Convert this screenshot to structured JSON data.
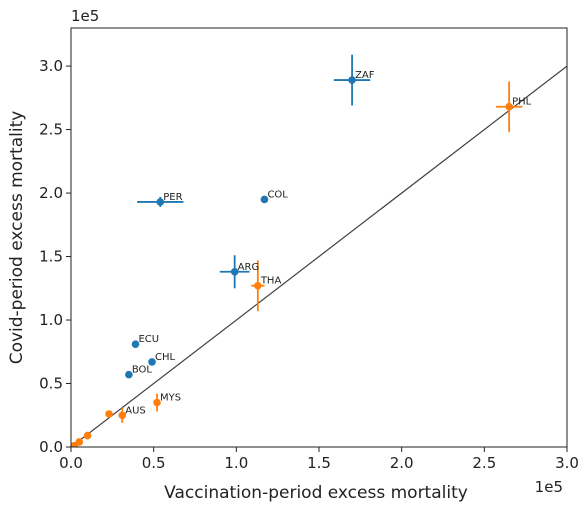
{
  "chart_data": {
    "type": "scatter",
    "xlabel": "Vaccination-period excess mortality",
    "ylabel": "Covid-period excess mortality",
    "x_multiplier": "1e5",
    "y_multiplier": "1e5",
    "xlim": [
      0,
      300000
    ],
    "ylim": [
      0,
      330000
    ],
    "x_ticks": [
      0,
      50000,
      100000,
      150000,
      200000,
      250000,
      300000
    ],
    "y_ticks": [
      0,
      50000,
      100000,
      150000,
      200000,
      250000,
      300000
    ],
    "x_tick_labels": [
      "0.0",
      "0.5",
      "1.0",
      "1.5",
      "2.0",
      "2.5",
      "3.0"
    ],
    "y_tick_labels": [
      "0.0",
      "0.5",
      "1.0",
      "1.5",
      "2.0",
      "2.5",
      "3.0"
    ],
    "grid": false,
    "reference_line": {
      "x": [
        0,
        300000
      ],
      "y": [
        0,
        300000
      ],
      "color": "#404040"
    },
    "colors": {
      "group_a": "#1f77b4",
      "group_b": "#ff7f0e"
    },
    "points": [
      {
        "label": "ZAF",
        "x": 170000,
        "y": 289000,
        "xerr": 11000,
        "yerr": 20000,
        "group": "group_a"
      },
      {
        "label": "PER",
        "x": 54000,
        "y": 193000,
        "xerr": 14000,
        "yerr": 4000,
        "group": "group_a"
      },
      {
        "label": "COL",
        "x": 117000,
        "y": 195000,
        "xerr": 0,
        "yerr": 0,
        "group": "group_a"
      },
      {
        "label": "ARG",
        "x": 99000,
        "y": 138000,
        "xerr": 9000,
        "yerr": 13000,
        "group": "group_a"
      },
      {
        "label": "ECU",
        "x": 39000,
        "y": 81000,
        "xerr": 0,
        "yerr": 0,
        "group": "group_a"
      },
      {
        "label": "CHL",
        "x": 49000,
        "y": 67000,
        "xerr": 0,
        "yerr": 0,
        "group": "group_a"
      },
      {
        "label": "BOL",
        "x": 35000,
        "y": 57000,
        "xerr": 0,
        "yerr": 0,
        "group": "group_a"
      },
      {
        "label": "PHL",
        "x": 265000,
        "y": 268000,
        "xerr": 8000,
        "yerr": 20000,
        "group": "group_b"
      },
      {
        "label": "THA",
        "x": 113000,
        "y": 127000,
        "xerr": 4000,
        "yerr": 20000,
        "group": "group_b"
      },
      {
        "label": "MYS",
        "x": 52000,
        "y": 35000,
        "xerr": 1000,
        "yerr": 7000,
        "group": "group_b"
      },
      {
        "label": "AUS",
        "x": 31000,
        "y": 25000,
        "xerr": 1000,
        "yerr": 6000,
        "group": "group_b"
      },
      {
        "label": "",
        "x": 23000,
        "y": 26000,
        "xerr": 0,
        "yerr": 0,
        "group": "group_b"
      },
      {
        "label": "",
        "x": 10000,
        "y": 9000,
        "xerr": 0,
        "yerr": 3000,
        "group": "group_b"
      },
      {
        "label": "",
        "x": 5000,
        "y": 4000,
        "xerr": 0,
        "yerr": 0,
        "group": "group_b"
      },
      {
        "label": "",
        "x": 2000,
        "y": 1000,
        "xerr": 0,
        "yerr": 0,
        "group": "group_b"
      },
      {
        "label": "",
        "x": 1000,
        "y": 0,
        "xerr": 0,
        "yerr": 0,
        "group": "group_b"
      }
    ]
  }
}
